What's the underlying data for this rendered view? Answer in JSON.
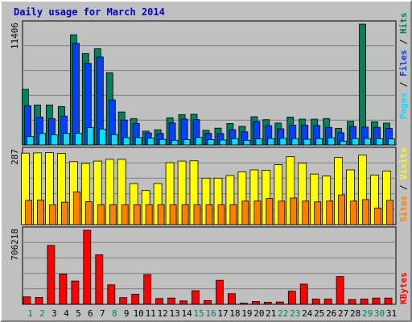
{
  "title": "Daily usage for March 2014",
  "colors": {
    "title": "#0000CC",
    "hits": "#00805C",
    "files": "#0040FF",
    "pages": "#00E0FF",
    "visits": "#FFFF00",
    "sites": "#FF8000",
    "kbytes": "#FF0000",
    "day_weekday": "#000000",
    "day_weekend": "#00805C",
    "panel_bg": "#C0C0C0",
    "grid": "#808080"
  },
  "chart_data": [
    {
      "type": "bar",
      "panel": "top",
      "categories": [
        "1",
        "2",
        "3",
        "4",
        "5",
        "6",
        "7",
        "8",
        "9",
        "10",
        "11",
        "12",
        "13",
        "14",
        "15",
        "16",
        "17",
        "18",
        "19",
        "20",
        "21",
        "22",
        "23",
        "24",
        "25",
        "26",
        "27",
        "28",
        "29",
        "30",
        "31"
      ],
      "ylim": [
        0,
        11406
      ],
      "ymax_label": "11406",
      "legend": [
        "Pages",
        "Files",
        "Hits"
      ],
      "series": [
        {
          "name": "Hits",
          "color_key": "hits",
          "values": [
            5250,
            3770,
            3770,
            3630,
            10400,
            8620,
            9080,
            6810,
            3110,
            2490,
            1300,
            1430,
            2560,
            2860,
            2890,
            1380,
            1580,
            2020,
            1750,
            2660,
            2380,
            2060,
            2630,
            2430,
            2430,
            2490,
            1560,
            2230,
            11406,
            2190,
            2060
          ]
        },
        {
          "name": "Files",
          "color_key": "files",
          "values": [
            3700,
            2630,
            2490,
            2720,
            9600,
            7700,
            8300,
            4250,
            2340,
            2030,
            1130,
            1090,
            2070,
            2440,
            2390,
            1090,
            1070,
            1440,
            1230,
            2210,
            1810,
            1520,
            1860,
            1860,
            1830,
            1650,
            1150,
            1740,
            1670,
            1660,
            1560
          ]
        },
        {
          "name": "Pages",
          "color_key": "pages",
          "values": [
            780,
            1070,
            950,
            1090,
            1090,
            1630,
            1500,
            970,
            690,
            690,
            640,
            520,
            430,
            490,
            700,
            490,
            460,
            590,
            430,
            560,
            600,
            620,
            590,
            530,
            590,
            660,
            360,
            600,
            600,
            590,
            560
          ]
        }
      ]
    },
    {
      "type": "bar",
      "panel": "middle",
      "categories": [
        "1",
        "2",
        "3",
        "4",
        "5",
        "6",
        "7",
        "8",
        "9",
        "10",
        "11",
        "12",
        "13",
        "14",
        "15",
        "16",
        "17",
        "18",
        "19",
        "20",
        "21",
        "22",
        "23",
        "24",
        "25",
        "26",
        "27",
        "28",
        "29",
        "30",
        "31"
      ],
      "ylim": [
        0,
        287
      ],
      "ymax_label": "287",
      "legend": [
        "Sites",
        "Visits"
      ],
      "series": [
        {
          "name": "Visits",
          "color_key": "visits",
          "values": [
            277,
            278,
            279,
            276,
            244,
            237,
            246,
            253,
            253,
            159,
            132,
            159,
            240,
            246,
            247,
            180,
            180,
            190,
            204,
            212,
            211,
            232,
            263,
            238,
            196,
            188,
            260,
            212,
            269,
            192,
            207
          ]
        },
        {
          "name": "Sites",
          "color_key": "sites",
          "values": [
            94,
            95,
            76,
            87,
            127,
            89,
            77,
            77,
            77,
            77,
            77,
            77,
            77,
            77,
            77,
            77,
            77,
            77,
            91,
            91,
            101,
            91,
            103,
            91,
            88,
            91,
            115,
            91,
            97,
            64,
            94
          ]
        }
      ]
    },
    {
      "type": "bar",
      "panel": "bottom",
      "categories": [
        "1",
        "2",
        "3",
        "4",
        "5",
        "6",
        "7",
        "8",
        "9",
        "10",
        "11",
        "12",
        "13",
        "14",
        "15",
        "16",
        "17",
        "18",
        "19",
        "20",
        "21",
        "22",
        "23",
        "24",
        "25",
        "26",
        "27",
        "28",
        "29",
        "30",
        "31"
      ],
      "ylim": [
        0,
        706218
      ],
      "ymax_label": "706218",
      "legend": [
        "KBytes"
      ],
      "series": [
        {
          "name": "KBytes",
          "color_key": "kbytes",
          "values": [
            71000,
            66000,
            561000,
            289000,
            222000,
            706218,
            472000,
            186000,
            64000,
            96000,
            283000,
            55000,
            60000,
            32000,
            130000,
            35000,
            229000,
            101000,
            11000,
            27000,
            19000,
            22000,
            125000,
            193000,
            51000,
            50000,
            264000,
            45000,
            51000,
            60000,
            60000
          ]
        }
      ]
    }
  ],
  "x_labels": [
    "1",
    "2",
    "3",
    "4",
    "5",
    "6",
    "7",
    "8",
    "9",
    "10",
    "11",
    "12",
    "13",
    "14",
    "15",
    "16",
    "17",
    "18",
    "19",
    "20",
    "21",
    "22",
    "23",
    "24",
    "25",
    "26",
    "27",
    "28",
    "29",
    "30",
    "31"
  ],
  "weekend_days": [
    1,
    2,
    8,
    15,
    16,
    22,
    23,
    29,
    30
  ]
}
